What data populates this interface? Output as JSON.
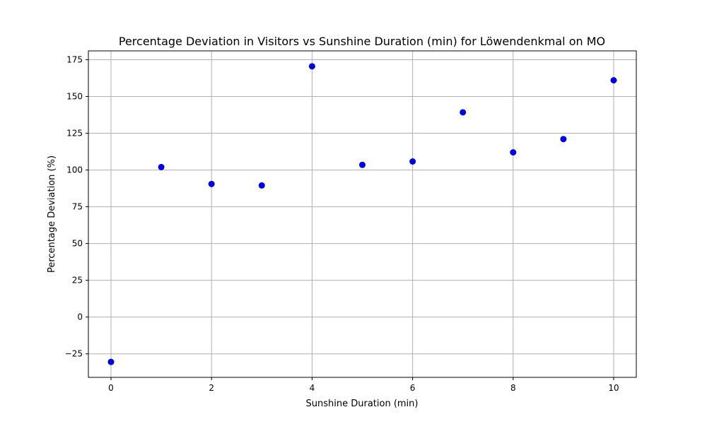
{
  "chart_data": {
    "type": "scatter",
    "title": "Percentage Deviation in Visitors vs Sunshine Duration (min) for Löwendenkmal on MO",
    "xlabel": "Sunshine Duration (min)",
    "ylabel": "Percentage Deviation (%)",
    "xlim": [
      -0.45,
      10.45
    ],
    "ylim": [
      -41,
      181
    ],
    "xticks": [
      0,
      2,
      4,
      6,
      8,
      10
    ],
    "yticks": [
      -25,
      0,
      25,
      50,
      75,
      100,
      125,
      150,
      175
    ],
    "grid": true,
    "marker_color": "#0000dd",
    "series": [
      {
        "x": [
          0,
          1,
          2,
          3,
          4,
          5,
          6,
          7,
          8,
          9,
          10
        ],
        "y": [
          -30.5,
          102,
          90.5,
          89.5,
          170.5,
          103.5,
          105.8,
          139.2,
          112,
          121,
          161
        ]
      }
    ]
  }
}
